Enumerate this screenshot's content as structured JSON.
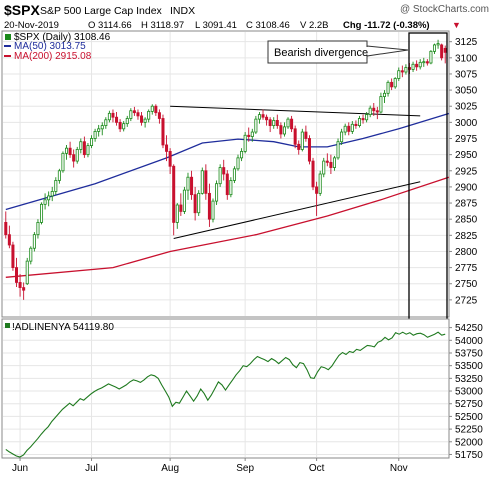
{
  "header": {
    "symbol": "$SPX",
    "name": "S&P 500 Large Cap Index",
    "exchange": "INDX",
    "watermark": "@ StockCharts.com",
    "date": "20-Nov-2019",
    "open": "O 3114.66",
    "high": "H 3118.97",
    "low": "L 3091.41",
    "close": "C 3108.46",
    "volume": "V 2.2B",
    "change": "Chg -11.72 (-0.38%)",
    "change_arrow": "▼"
  },
  "colors": {
    "up": "#1a8a1a",
    "down": "#c8102e",
    "ma50": "#1f2d9c",
    "ma200": "#c8102e",
    "breadth": "#1f7a1f",
    "grid": "#e6e6e6",
    "text": "#000000"
  },
  "chart_data": [
    {
      "type": "candlestick",
      "title": "$SPX S&P 500 Large Cap Index INDX",
      "ylim": [
        2700,
        3140
      ],
      "yticks": [
        2725,
        2750,
        2775,
        2800,
        2825,
        2850,
        2875,
        2900,
        2925,
        2950,
        2975,
        3000,
        3025,
        3050,
        3075,
        3100,
        3125
      ],
      "months": [
        {
          "label": "Jun",
          "index": 4
        },
        {
          "label": "Jul",
          "index": 24
        },
        {
          "label": "Aug",
          "index": 46
        },
        {
          "label": "Sep",
          "index": 67
        },
        {
          "label": "Oct",
          "index": 87
        },
        {
          "label": "Nov",
          "index": 110
        }
      ],
      "legend": [
        {
          "label": "$SPX (Daily) 3108.46",
          "key": "price"
        },
        {
          "label": "MA(50) 3013.75",
          "key": "ma50"
        },
        {
          "label": "MA(200) 2915.08",
          "key": "ma200"
        }
      ],
      "candles": [
        [
          2845,
          2862,
          2820,
          2826
        ],
        [
          2826,
          2840,
          2805,
          2810
        ],
        [
          2810,
          2815,
          2770,
          2775
        ],
        [
          2775,
          2790,
          2745,
          2752
        ],
        [
          2752,
          2765,
          2730,
          2744
        ],
        [
          2744,
          2752,
          2725,
          2740
        ],
        [
          2750,
          2790,
          2748,
          2785
        ],
        [
          2785,
          2808,
          2780,
          2805
        ],
        [
          2805,
          2830,
          2800,
          2826
        ],
        [
          2826,
          2850,
          2820,
          2845
        ],
        [
          2845,
          2876,
          2842,
          2873
        ],
        [
          2873,
          2890,
          2865,
          2880
        ],
        [
          2880,
          2893,
          2870,
          2886
        ],
        [
          2886,
          2900,
          2878,
          2893
        ],
        [
          2893,
          2915,
          2888,
          2910
        ],
        [
          2910,
          2928,
          2905,
          2925
        ],
        [
          2925,
          2955,
          2922,
          2952
        ],
        [
          2952,
          2965,
          2942,
          2960
        ],
        [
          2960,
          2970,
          2945,
          2950
        ],
        [
          2950,
          2958,
          2930,
          2940
        ],
        [
          2940,
          2962,
          2936,
          2958
        ],
        [
          2958,
          2975,
          2952,
          2970
        ],
        [
          2970,
          2978,
          2945,
          2950
        ],
        [
          2950,
          2968,
          2946,
          2964
        ],
        [
          2964,
          2980,
          2960,
          2975
        ],
        [
          2975,
          2990,
          2970,
          2986
        ],
        [
          2986,
          2996,
          2978,
          2990
        ],
        [
          2990,
          3000,
          2980,
          2995
        ],
        [
          2995,
          3008,
          2990,
          3004
        ],
        [
          3004,
          3018,
          3000,
          3014
        ],
        [
          3014,
          3020,
          3000,
          3008
        ],
        [
          3008,
          3016,
          2995,
          3000
        ],
        [
          3000,
          3005,
          2985,
          2990
        ],
        [
          2990,
          3002,
          2986,
          2998
        ],
        [
          2998,
          3010,
          2993,
          3006
        ],
        [
          3006,
          3022,
          3002,
          3018
        ],
        [
          3018,
          3024,
          3010,
          3015
        ],
        [
          3015,
          3020,
          3004,
          3010
        ],
        [
          3010,
          3016,
          2995,
          3000
        ],
        [
          3000,
          3008,
          2992,
          3005
        ],
        [
          3005,
          3020,
          3000,
          3017
        ],
        [
          3017,
          3028,
          3012,
          3025
        ],
        [
          3025,
          3028,
          3010,
          3015
        ],
        [
          3015,
          3020,
          2998,
          3006
        ],
        [
          3006,
          3012,
          2960,
          2965
        ],
        [
          2965,
          2980,
          2940,
          2955
        ],
        [
          2955,
          2960,
          2920,
          2932
        ],
        [
          2932,
          2935,
          2825,
          2845
        ],
        [
          2845,
          2875,
          2835,
          2872
        ],
        [
          2872,
          2890,
          2855,
          2862
        ],
        [
          2862,
          2900,
          2858,
          2895
        ],
        [
          2895,
          2922,
          2880,
          2915
        ],
        [
          2915,
          2925,
          2880,
          2888
        ],
        [
          2888,
          2900,
          2848,
          2860
        ],
        [
          2860,
          2895,
          2855,
          2890
        ],
        [
          2890,
          2930,
          2888,
          2925
        ],
        [
          2925,
          2935,
          2880,
          2890
        ],
        [
          2890,
          2905,
          2838,
          2850
        ],
        [
          2850,
          2882,
          2845,
          2878
        ],
        [
          2878,
          2910,
          2872,
          2905
        ],
        [
          2905,
          2935,
          2900,
          2930
        ],
        [
          2930,
          2942,
          2910,
          2920
        ],
        [
          2920,
          2926,
          2880,
          2888
        ],
        [
          2888,
          2915,
          2884,
          2910
        ],
        [
          2910,
          2932,
          2906,
          2928
        ],
        [
          2928,
          2950,
          2925,
          2945
        ],
        [
          2945,
          2960,
          2940,
          2955
        ],
        [
          2955,
          2985,
          2952,
          2980
        ],
        [
          2980,
          2992,
          2970,
          2978
        ],
        [
          2978,
          2990,
          2970,
          2985
        ],
        [
          2985,
          3010,
          2982,
          3005
        ],
        [
          3005,
          3016,
          2998,
          3012
        ],
        [
          3012,
          3020,
          3004,
          3008
        ],
        [
          3008,
          3012,
          2995,
          3004
        ],
        [
          3004,
          3008,
          2985,
          2995
        ],
        [
          2995,
          3008,
          2990,
          3003
        ],
        [
          3003,
          3012,
          2990,
          2995
        ],
        [
          2995,
          3000,
          2975,
          2982
        ],
        [
          2982,
          3000,
          2978,
          2993
        ],
        [
          2993,
          3008,
          2990,
          3005
        ],
        [
          3005,
          3010,
          2985,
          2990
        ],
        [
          2990,
          2995,
          2960,
          2966
        ],
        [
          2966,
          2972,
          2950,
          2958
        ],
        [
          2958,
          2990,
          2955,
          2985
        ],
        [
          2985,
          2995,
          2970,
          2975
        ],
        [
          2975,
          2980,
          2935,
          2940
        ],
        [
          2940,
          2945,
          2895,
          2900
        ],
        [
          2900,
          2908,
          2855,
          2890
        ],
        [
          2890,
          2925,
          2886,
          2920
        ],
        [
          2920,
          2945,
          2915,
          2940
        ],
        [
          2940,
          2952,
          2932,
          2938
        ],
        [
          2938,
          2950,
          2920,
          2930
        ],
        [
          2930,
          2948,
          2925,
          2945
        ],
        [
          2945,
          2975,
          2942,
          2970
        ],
        [
          2970,
          2990,
          2965,
          2985
        ],
        [
          2985,
          2998,
          2980,
          2994
        ],
        [
          2994,
          3000,
          2980,
          2986
        ],
        [
          2986,
          3002,
          2982,
          2997
        ],
        [
          2997,
          3003,
          2990,
          2995
        ],
        [
          2995,
          3010,
          2992,
          3006
        ],
        [
          3006,
          3012,
          2998,
          3004
        ],
        [
          3004,
          3016,
          3000,
          3012
        ],
        [
          3012,
          3026,
          3008,
          3022
        ],
        [
          3022,
          3030,
          3010,
          3018
        ],
        [
          3018,
          3024,
          3005,
          3016
        ],
        [
          3016,
          3046,
          3014,
          3040
        ],
        [
          3040,
          3050,
          3030,
          3045
        ],
        [
          3045,
          3065,
          3040,
          3062
        ],
        [
          3062,
          3068,
          3050,
          3055
        ],
        [
          3055,
          3070,
          3052,
          3068
        ],
        [
          3068,
          3085,
          3064,
          3080
        ],
        [
          3080,
          3088,
          3070,
          3078
        ],
        [
          3078,
          3090,
          3074,
          3085
        ],
        [
          3085,
          3092,
          3075,
          3082
        ],
        [
          3082,
          3094,
          3078,
          3090
        ],
        [
          3090,
          3096,
          3080,
          3086
        ],
        [
          3086,
          3098,
          3082,
          3093
        ],
        [
          3093,
          3100,
          3086,
          3094
        ],
        [
          3094,
          3098,
          3088,
          3092
        ],
        [
          3092,
          3112,
          3090,
          3110
        ],
        [
          3110,
          3122,
          3106,
          3120
        ],
        [
          3120,
          3128,
          3114,
          3122
        ],
        [
          3120,
          3122,
          3096,
          3100
        ],
        [
          3114.66,
          3118.97,
          3091.41,
          3108.46
        ]
      ],
      "ma50": [
        [
          0,
          2865
        ],
        [
          25,
          2905
        ],
        [
          45,
          2945
        ],
        [
          55,
          2968
        ],
        [
          65,
          2974
        ],
        [
          75,
          2970
        ],
        [
          82,
          2962
        ],
        [
          90,
          2962
        ],
        [
          100,
          2975
        ],
        [
          110,
          2990
        ],
        [
          124,
          3013.75
        ]
      ],
      "ma200": [
        [
          0,
          2760
        ],
        [
          30,
          2775
        ],
        [
          46,
          2800
        ],
        [
          70,
          2826
        ],
        [
          90,
          2855
        ],
        [
          105,
          2880
        ],
        [
          124,
          2915.08
        ]
      ],
      "trendlines": [
        {
          "from": [
            46,
            3025
          ],
          "to": [
            116,
            3010
          ]
        },
        {
          "from": [
            47,
            2820
          ],
          "to": [
            116,
            2908
          ]
        }
      ],
      "annotation": "Bearish divergence"
    },
    {
      "type": "line",
      "legend": "!ADLINENYA 54119.80",
      "ylim": [
        51700,
        54400
      ],
      "yticks": [
        51750,
        52000,
        52250,
        52500,
        52750,
        53000,
        53250,
        53500,
        53750,
        54000,
        54250
      ],
      "series": [
        {
          "values": [
            51850,
            51800,
            51760,
            51720,
            51700,
            51740,
            51830,
            51900,
            51980,
            52060,
            52150,
            52230,
            52300,
            52400,
            52480,
            52560,
            52640,
            52700,
            52760,
            52710,
            52780,
            52850,
            52820,
            52880,
            52940,
            52990,
            53030,
            53060,
            53100,
            53140,
            53110,
            53080,
            53040,
            53080,
            53120,
            53180,
            53220,
            53200,
            53170,
            53220,
            53280,
            53320,
            53300,
            53250,
            53120,
            53000,
            52880,
            52700,
            52780,
            52760,
            52880,
            53000,
            52900,
            52800,
            52900,
            53040,
            52950,
            52820,
            52920,
            53050,
            53180,
            53120,
            53020,
            53120,
            53220,
            53320,
            53400,
            53500,
            53480,
            53540,
            53620,
            53680,
            53650,
            53620,
            53580,
            53640,
            53600,
            53540,
            53600,
            53660,
            53620,
            53520,
            53460,
            53560,
            53540,
            53420,
            53260,
            53250,
            53380,
            53480,
            53460,
            53420,
            53490,
            53600,
            53700,
            53760,
            53720,
            53780,
            53760,
            53820,
            53800,
            53850,
            53900,
            53890,
            53870,
            53960,
            53990,
            54060,
            54010,
            54050,
            54150,
            54120,
            54160,
            54120,
            54150,
            54100,
            54130,
            54140,
            54110,
            54060,
            54090,
            54120,
            54160,
            54100,
            54119.8
          ]
        }
      ]
    }
  ]
}
